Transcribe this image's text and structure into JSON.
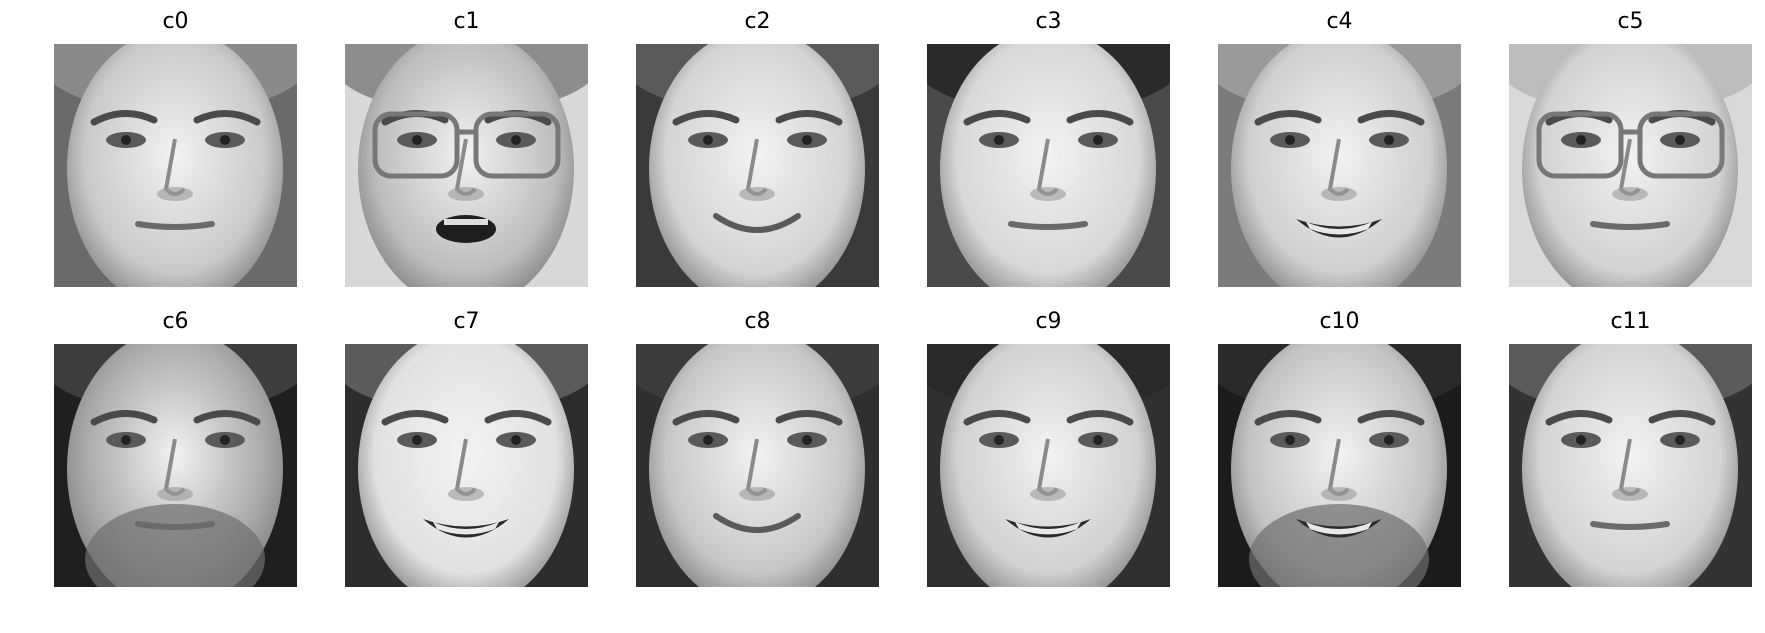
{
  "panels": [
    {
      "title": "c0",
      "face": {
        "tone": "#c9c9c9",
        "bg": "#6a6a6a",
        "glasses": false,
        "mouth": "closed",
        "hair": "#8a8a8a",
        "beard": false
      }
    },
    {
      "title": "c1",
      "face": {
        "tone": "#bdbdbd",
        "bg": "#d8d8d8",
        "glasses": true,
        "mouth": "open",
        "hair": "#8d8d8d",
        "beard": false
      }
    },
    {
      "title": "c2",
      "face": {
        "tone": "#d4d4d4",
        "bg": "#3a3a3a",
        "glasses": false,
        "mouth": "smile",
        "hair": "#5a5a5a",
        "beard": false
      }
    },
    {
      "title": "c3",
      "face": {
        "tone": "#d8d8d8",
        "bg": "#4a4a4a",
        "glasses": false,
        "mouth": "closed",
        "hair": "#2a2a2a",
        "beard": false
      }
    },
    {
      "title": "c4",
      "face": {
        "tone": "#cfcfcf",
        "bg": "#7b7b7b",
        "glasses": false,
        "mouth": "teeth",
        "hair": "#9a9a9a",
        "beard": false
      }
    },
    {
      "title": "c5",
      "face": {
        "tone": "#d2d2d2",
        "bg": "#d9d9d9",
        "glasses": true,
        "mouth": "closed",
        "hair": "#bdbdbd",
        "beard": false
      }
    },
    {
      "title": "c6",
      "face": {
        "tone": "#a9a9a9",
        "bg": "#1f1f1f",
        "glasses": false,
        "mouth": "closed",
        "hair": "#3d3d3d",
        "beard": true
      }
    },
    {
      "title": "c7",
      "face": {
        "tone": "#e2e2e2",
        "bg": "#2d2d2d",
        "glasses": false,
        "mouth": "teeth",
        "hair": "#5b5b5b",
        "beard": false
      }
    },
    {
      "title": "c8",
      "face": {
        "tone": "#c7c7c7",
        "bg": "#2f2f2f",
        "glasses": false,
        "mouth": "smile",
        "hair": "#3b3b3b",
        "beard": false
      }
    },
    {
      "title": "c9",
      "face": {
        "tone": "#d1d1d1",
        "bg": "#303030",
        "glasses": false,
        "mouth": "teeth",
        "hair": "#2a2a2a",
        "beard": false
      }
    },
    {
      "title": "c10",
      "face": {
        "tone": "#c4c4c4",
        "bg": "#1b1b1b",
        "glasses": false,
        "mouth": "teeth",
        "hair": "#2a2a2a",
        "beard": true
      }
    },
    {
      "title": "c11",
      "face": {
        "tone": "#d3d3d3",
        "bg": "#333333",
        "glasses": false,
        "mouth": "closed",
        "hair": "#5a5a5a",
        "beard": false
      }
    }
  ]
}
